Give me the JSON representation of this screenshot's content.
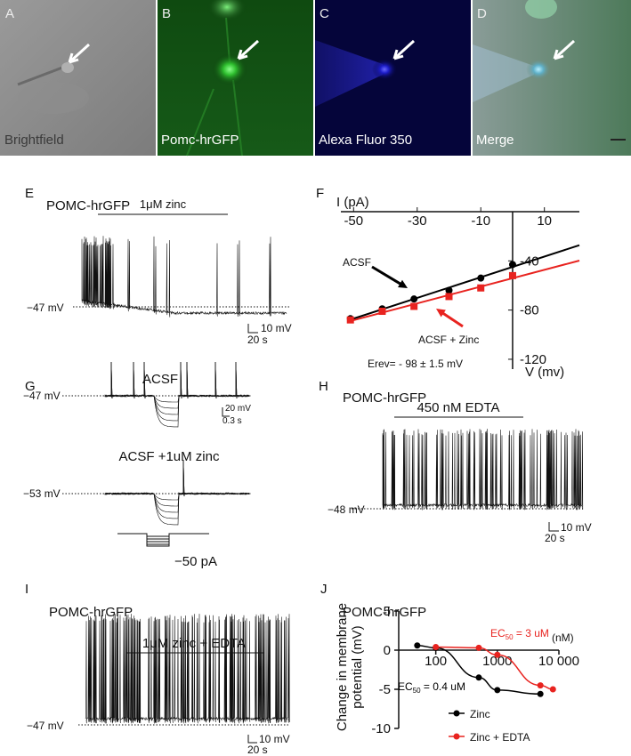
{
  "panels": {
    "A": {
      "letter": "A",
      "label": "Brightfield"
    },
    "B": {
      "letter": "B",
      "label": "Pomc-hrGFP"
    },
    "C": {
      "letter": "C",
      "label": "Alexa Fluor 350"
    },
    "D": {
      "letter": "D",
      "label": "Merge"
    },
    "E": {
      "letter": "E",
      "title": "POMC-hrGFP",
      "treatment": "1μM zinc",
      "vm": "−47 mV",
      "scale_v": "10 mV",
      "scale_t": "20 s"
    },
    "G": {
      "letter": "G",
      "condition_1": "ACSF",
      "vm_1": "−47 mV",
      "scale_v": "20 mV",
      "scale_t": "0.3 s",
      "condition_2": "ACSF +1uM zinc",
      "vm_2": "−53 mV",
      "step": "−50 pA"
    },
    "H": {
      "letter": "H",
      "title": "POMC-hrGFP",
      "treatment": "450 nM EDTA",
      "vm": "−48 mV",
      "scale_v": "10 mV",
      "scale_t": "20 s"
    },
    "I": {
      "letter": "I",
      "title": "POMC-hrGFP",
      "treatment": "1μM zinc + EDTA",
      "vm": "−47 mV",
      "scale_v": "10 mV",
      "scale_t": "20 s"
    }
  },
  "chart_data": [
    {
      "type": "line",
      "letter": "F",
      "ylabel": "I (pA)",
      "xlabel": "V (mv)",
      "annotation": "Erev= - 98 ± 1.5 mV",
      "x": [
        -51,
        -41,
        -31,
        -20,
        -10,
        0
      ],
      "series": [
        {
          "name": "ACSF",
          "color": "#000000",
          "marker": "circle",
          "values": [
            -87,
            -79,
            -71,
            -64,
            -54,
            -43
          ]
        },
        {
          "name": "ACSF + Zinc",
          "color": "#e8231f",
          "marker": "square",
          "values": [
            -88,
            -81,
            -77,
            -69,
            -62,
            -52
          ]
        }
      ],
      "xlim": [
        -54,
        21
      ],
      "ylim": [
        -128,
        0
      ],
      "xticks": [
        -50,
        -30,
        -10,
        10
      ],
      "yticks": [
        -40,
        -80,
        -120
      ]
    },
    {
      "type": "scatter",
      "letter": "J",
      "title": "POMC-hrGFP",
      "ylabel": [
        "Change in membrane",
        "potential (mV)"
      ],
      "xunit": "(nM)",
      "xscale": "log",
      "xlim": [
        25,
        10000
      ],
      "ylim": [
        -10,
        5
      ],
      "xticks": [
        100,
        1000,
        {
          "value": 10000,
          "label": "10 000"
        }
      ],
      "yticks": [
        5,
        0,
        -5,
        -10
      ],
      "series": [
        {
          "name": "Zinc",
          "color": "#000000",
          "x": [
            50,
            100,
            500,
            1000,
            5000
          ],
          "values": [
            0.6,
            0.3,
            -3.5,
            -5.1,
            -5.6
          ],
          "ec50": {
            "prefix": "EC",
            "sub": "50",
            "rest": " = 0.4 uM"
          }
        },
        {
          "name": "Zinc + EDTA",
          "color": "#e8231f",
          "x": [
            100,
            500,
            1000,
            5000,
            8000
          ],
          "values": [
            0.4,
            0.3,
            -0.6,
            -4.5,
            -5
          ],
          "ec50": {
            "prefix": "EC",
            "sub": "50",
            "rest": " = 3 uM"
          }
        }
      ]
    }
  ]
}
